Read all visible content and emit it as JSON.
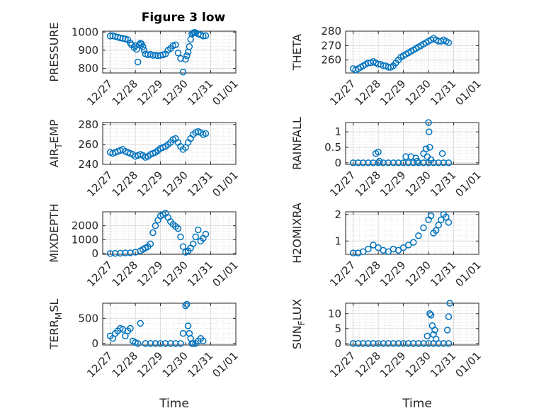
{
  "figure_title": "Figure 3 low",
  "chart_data": [
    {
      "type": "scatter",
      "ylabel_parts": [
        "PRESSURE"
      ],
      "ylim": [
        775,
        1005
      ],
      "yticks": [
        800,
        900,
        1000
      ],
      "x": [
        0,
        0.1,
        0.2,
        0.3,
        0.4,
        0.5,
        0.6,
        0.7,
        0.8,
        0.85,
        0.95,
        1.0,
        1.05,
        1.1,
        1.15,
        1.2,
        1.25,
        1.3,
        1.35,
        1.4,
        1.5,
        1.6,
        1.7,
        1.8,
        1.9,
        2.0,
        2.1,
        2.2,
        2.3,
        2.4,
        2.5,
        2.6,
        2.7,
        2.8,
        2.9,
        3.0,
        3.05,
        3.1,
        3.15,
        3.2,
        3.25,
        3.3,
        3.35,
        3.4,
        3.5,
        3.6,
        3.7,
        3.8
      ],
      "y": [
        978,
        980,
        976,
        972,
        968,
        965,
        962,
        958,
        940,
        930,
        915,
        925,
        905,
        835,
        930,
        938,
        935,
        920,
        900,
        880,
        875,
        878,
        872,
        874,
        870,
        872,
        875,
        880,
        900,
        910,
        925,
        930,
        885,
        855,
        780,
        850,
        870,
        890,
        920,
        960,
        990,
        995,
        998,
        996,
        990,
        985,
        978,
        980
      ]
    },
    {
      "type": "scatter",
      "ylabel_parts": [
        "THETA"
      ],
      "ylim": [
        251,
        280
      ],
      "yticks": [
        260,
        270,
        280
      ],
      "x": [
        0,
        0.1,
        0.2,
        0.3,
        0.4,
        0.5,
        0.6,
        0.7,
        0.8,
        0.9,
        1.0,
        1.1,
        1.2,
        1.3,
        1.4,
        1.5,
        1.6,
        1.7,
        1.8,
        1.9,
        2.0,
        2.1,
        2.2,
        2.3,
        2.4,
        2.5,
        2.6,
        2.7,
        2.8,
        2.9,
        3.0,
        3.1,
        3.2,
        3.3,
        3.4,
        3.5,
        3.6,
        3.7,
        3.8
      ],
      "y": [
        254,
        253,
        254,
        255,
        256,
        257,
        258,
        258,
        259,
        258,
        257,
        257,
        256,
        256,
        255,
        255,
        256,
        258,
        260,
        262,
        263,
        264,
        265,
        266,
        267,
        268,
        269,
        270,
        271,
        272,
        273,
        274,
        275,
        274,
        273,
        273,
        274,
        273,
        272
      ]
    },
    {
      "type": "scatter",
      "ylabel_parts": [
        "AIR",
        "T",
        "EMP"
      ],
      "ylim": [
        240,
        282
      ],
      "yticks": [
        240,
        260,
        280
      ],
      "x": [
        0,
        0.1,
        0.2,
        0.3,
        0.4,
        0.5,
        0.6,
        0.7,
        0.8,
        0.9,
        1.0,
        1.1,
        1.2,
        1.3,
        1.4,
        1.5,
        1.6,
        1.7,
        1.8,
        1.9,
        2.0,
        2.1,
        2.2,
        2.3,
        2.4,
        2.5,
        2.6,
        2.7,
        2.8,
        2.9,
        3.0,
        3.1,
        3.2,
        3.3,
        3.4,
        3.5,
        3.6,
        3.7,
        3.8
      ],
      "y": [
        252,
        251,
        252,
        253,
        254,
        255,
        253,
        252,
        251,
        250,
        248,
        249,
        250,
        249,
        247,
        248,
        250,
        251,
        252,
        254,
        256,
        257,
        258,
        260,
        262,
        265,
        266,
        262,
        258,
        255,
        257,
        262,
        266,
        270,
        272,
        273,
        272,
        270,
        271
      ]
    },
    {
      "type": "scatter",
      "ylabel_parts": [
        "RAINFALL"
      ],
      "ylim": [
        -0.05,
        1.3
      ],
      "yticks": [
        0,
        0.5,
        1
      ],
      "x": [
        0,
        0.2,
        0.4,
        0.6,
        0.8,
        1.0,
        1.2,
        1.4,
        1.6,
        1.8,
        2.0,
        2.2,
        2.4,
        2.6,
        2.8,
        3.0,
        3.2,
        3.4,
        3.6,
        3.8,
        0.9,
        1.0,
        1.05,
        2.1,
        2.3,
        2.5,
        2.55,
        2.8,
        2.9,
        2.95,
        3.0,
        3.02,
        3.05,
        3.1,
        3.55
      ],
      "y": [
        0,
        0,
        0,
        0,
        0,
        0,
        0,
        0,
        0,
        0,
        0,
        0,
        0,
        0,
        0,
        0,
        0,
        0,
        0,
        0,
        0.3,
        0.35,
        0.05,
        0.2,
        0.2,
        0.15,
        0.05,
        0.3,
        0.45,
        0.2,
        1.3,
        1.0,
        0.5,
        0.1,
        0.3
      ]
    },
    {
      "type": "scatter",
      "ylabel_parts": [
        "MIXDEPTH"
      ],
      "ylim": [
        -50,
        3000
      ],
      "yticks": [
        0,
        1000,
        2000
      ],
      "x": [
        0,
        0.2,
        0.4,
        0.6,
        0.8,
        1.0,
        1.2,
        1.3,
        1.4,
        1.5,
        1.6,
        1.7,
        1.8,
        1.9,
        2.0,
        2.1,
        2.2,
        2.3,
        2.4,
        2.5,
        2.6,
        2.7,
        2.8,
        2.9,
        3.0,
        3.1,
        3.2,
        3.3,
        3.4,
        3.5,
        3.6,
        3.7,
        3.8
      ],
      "y": [
        10,
        20,
        30,
        50,
        60,
        100,
        200,
        300,
        400,
        500,
        700,
        1500,
        2000,
        2400,
        2700,
        2800,
        2900,
        2600,
        2300,
        2100,
        1950,
        1800,
        1200,
        500,
        100,
        200,
        400,
        700,
        1200,
        1700,
        900,
        1100,
        1400
      ]
    },
    {
      "type": "scatter",
      "ylabel_parts": [
        "H2OMIXRA"
      ],
      "ylim": [
        0.5,
        2.1
      ],
      "yticks": [
        1,
        2
      ],
      "x": [
        0,
        0.2,
        0.4,
        0.6,
        0.8,
        1.0,
        1.2,
        1.4,
        1.6,
        1.8,
        2.0,
        2.2,
        2.4,
        2.6,
        2.8,
        3.0,
        3.1,
        3.2,
        3.3,
        3.4,
        3.5,
        3.6,
        3.7,
        3.8
      ],
      "y": [
        0.55,
        0.55,
        0.6,
        0.7,
        0.85,
        0.75,
        0.65,
        0.6,
        0.7,
        0.65,
        0.75,
        0.85,
        0.95,
        1.2,
        1.5,
        1.8,
        1.95,
        1.3,
        1.4,
        1.6,
        1.8,
        2.0,
        1.9,
        1.7
      ]
    },
    {
      "type": "scatter",
      "ylabel_parts": [
        "TERR",
        "M",
        "SL"
      ],
      "ylim": [
        -30,
        800
      ],
      "yticks": [
        0,
        500
      ],
      "x": [
        0,
        0.1,
        0.2,
        0.3,
        0.4,
        0.5,
        0.6,
        0.7,
        0.8,
        0.9,
        1.0,
        1.1,
        1.2,
        1.4,
        1.6,
        1.8,
        2.0,
        2.2,
        2.4,
        2.6,
        2.8,
        2.9,
        3.0,
        3.05,
        3.1,
        3.15,
        3.2,
        3.25,
        3.3,
        3.4,
        3.5,
        3.6,
        3.7
      ],
      "y": [
        150,
        100,
        200,
        250,
        300,
        280,
        150,
        250,
        300,
        50,
        20,
        0,
        400,
        0,
        0,
        0,
        0,
        0,
        0,
        0,
        0,
        200,
        750,
        780,
        350,
        200,
        100,
        0,
        0,
        0,
        50,
        100,
        50
      ]
    },
    {
      "type": "scatter",
      "ylabel_parts": [
        "SUN",
        "F",
        "LUX"
      ],
      "ylim": [
        -0.5,
        13.5
      ],
      "yticks": [
        0,
        5,
        10
      ],
      "x": [
        0,
        0.2,
        0.4,
        0.6,
        0.8,
        1.0,
        1.2,
        1.4,
        1.6,
        1.8,
        2.0,
        2.2,
        2.4,
        2.6,
        2.8,
        3.0,
        3.2,
        3.4,
        3.6,
        3.8,
        2.95,
        3.05,
        3.1,
        3.15,
        3.2,
        3.25,
        3.3,
        3.75,
        3.8,
        3.85
      ],
      "y": [
        0,
        0,
        0,
        0,
        0,
        0,
        0,
        0,
        0,
        0,
        0,
        0,
        0,
        0,
        0,
        0,
        0,
        0,
        0,
        0,
        2.5,
        10,
        9.5,
        6,
        3,
        4.5,
        1.5,
        4.5,
        9,
        13.5
      ]
    }
  ],
  "x_axis": {
    "label": "Time",
    "ticks": [
      "12/27",
      "12/28",
      "12/29",
      "12/30",
      "12/31",
      "01/01"
    ],
    "range": [
      -0.3,
      5
    ]
  },
  "marker_color": "#0072BD"
}
